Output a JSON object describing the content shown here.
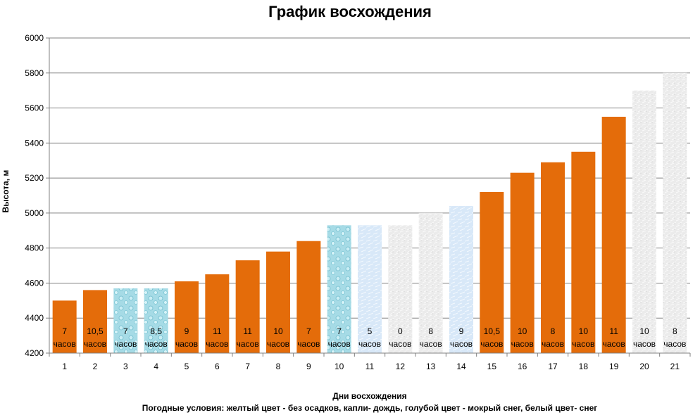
{
  "chart_data": {
    "type": "bar",
    "title": "График восхождения",
    "xlabel": "Дни восхождения",
    "ylabel": "Высота, м",
    "note": "Погодные условия: желтый цвет - без осадков, капли- дождь, голубой цвет - мокрый снег, белый цвет- снег",
    "ylim": [
      4200,
      6000
    ],
    "yticks": [
      4200,
      4400,
      4600,
      4800,
      5000,
      5200,
      5400,
      5600,
      5800,
      6000
    ],
    "grid": true,
    "categories": [
      "1",
      "2",
      "3",
      "4",
      "5",
      "6",
      "7",
      "8",
      "9",
      "10",
      "11",
      "12",
      "13",
      "14",
      "15",
      "16",
      "17",
      "18",
      "19",
      "20",
      "21"
    ],
    "values": [
      4500,
      4560,
      4570,
      4570,
      4610,
      4650,
      4730,
      4780,
      4840,
      4930,
      4930,
      4930,
      5000,
      5040,
      5120,
      5230,
      5290,
      5350,
      5550,
      5700,
      5800
    ],
    "hours": [
      "7",
      "10,5",
      "7",
      "8,5",
      "9",
      "11",
      "11",
      "10",
      "7",
      "7",
      "5",
      "0",
      "8",
      "9",
      "10,5",
      "10",
      "8",
      "10",
      "11",
      "10",
      "8"
    ],
    "hours_unit": "часов",
    "weather": [
      "clear",
      "clear",
      "rain",
      "rain",
      "clear",
      "clear",
      "clear",
      "clear",
      "clear",
      "rain",
      "wet-snow",
      "snow",
      "snow",
      "wet-snow",
      "clear",
      "clear",
      "clear",
      "clear",
      "clear",
      "snow",
      "snow"
    ],
    "colors": {
      "clear": "#e46c0a",
      "rain": "#a9dde8",
      "wet-snow": "#dce9f7",
      "snow": "#ececec",
      "grid": "#808080",
      "axis": "#808080"
    }
  }
}
